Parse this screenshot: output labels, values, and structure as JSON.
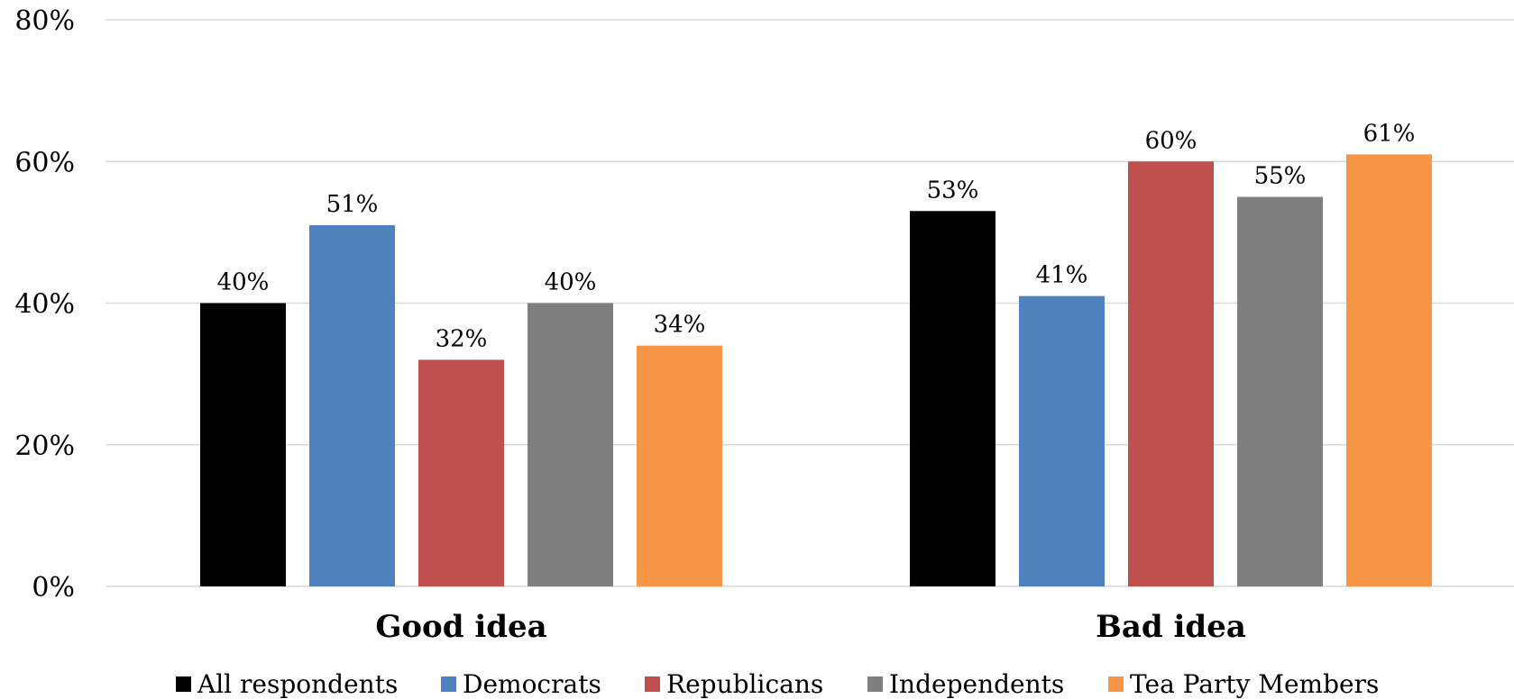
{
  "chart_data": {
    "type": "bar",
    "categories": [
      "Good idea",
      "Bad idea"
    ],
    "series": [
      {
        "name": "All respondents",
        "values": [
          40,
          53
        ],
        "color": "#000000"
      },
      {
        "name": "Democrats",
        "values": [
          51,
          41
        ],
        "color": "#4f81bd"
      },
      {
        "name": "Republicans",
        "values": [
          32,
          60
        ],
        "color": "#c0504d"
      },
      {
        "name": "Independents",
        "values": [
          40,
          55
        ],
        "color": "#7f7f7f"
      },
      {
        "name": "Tea Party Members",
        "values": [
          34,
          61
        ],
        "color": "#f79646"
      }
    ],
    "y_ticks": [
      "0%",
      "20%",
      "40%",
      "60%",
      "80%"
    ],
    "ylim": [
      0,
      80
    ],
    "value_suffix": "%",
    "grid": true,
    "legend_position": "bottom",
    "title": "",
    "xlabel": "",
    "ylabel": ""
  }
}
